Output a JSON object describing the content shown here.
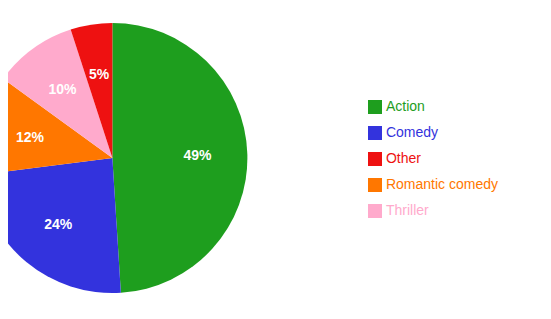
{
  "chart_data": {
    "type": "pie",
    "categories": [
      "Action",
      "Comedy",
      "Romantic comedy",
      "Thriller",
      "Other"
    ],
    "values": [
      49,
      24,
      12,
      10,
      5
    ],
    "value_labels": [
      "49%",
      "24%",
      "12%",
      "10%",
      "5%"
    ],
    "colors": [
      "#1e9e1e",
      "#3333dd",
      "#ff7700",
      "#ffaacc",
      "#ee1111"
    ],
    "data_labels": true,
    "legend": "right"
  }
}
